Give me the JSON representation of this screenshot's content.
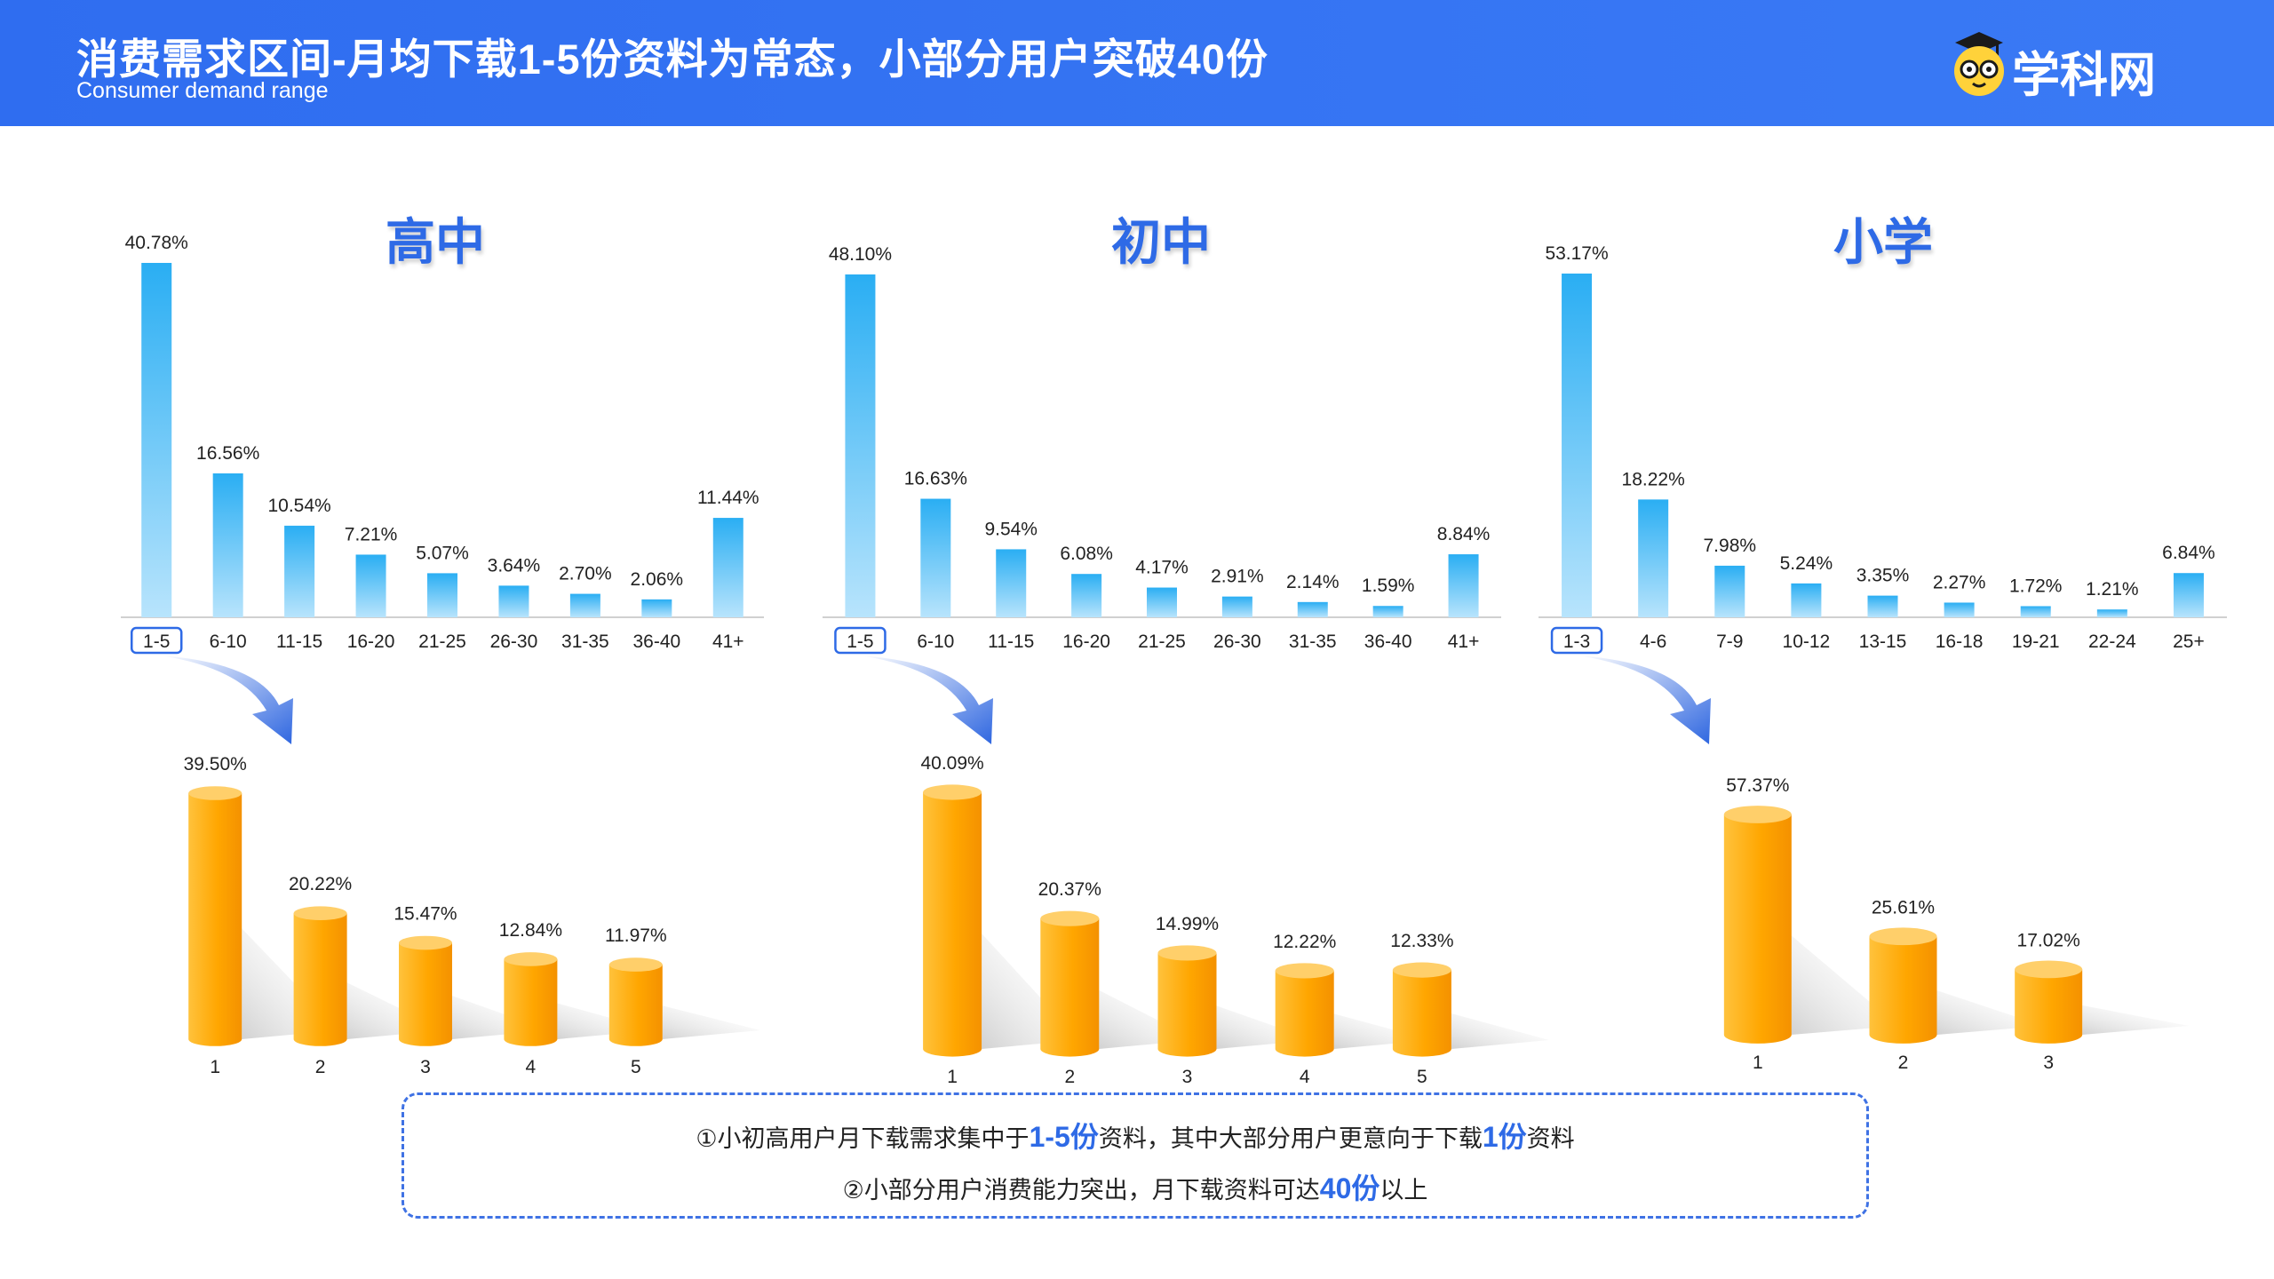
{
  "header": {
    "title": "消费需求区间-月均下载1-5份资料为常态，小部分用户突破40份",
    "subtitle": "Consumer demand range",
    "logo_text": "学科网"
  },
  "colors": {
    "header_blue": "#2f6df0",
    "accent_blue": "#2e6ae6",
    "bar_blue": "#3db6f4",
    "bar_orange": "#ffa800"
  },
  "chart_data": [
    {
      "type": "bar",
      "title": "高中",
      "categories": [
        "1-5",
        "6-10",
        "11-15",
        "16-20",
        "21-25",
        "26-30",
        "31-35",
        "36-40",
        "41+"
      ],
      "values": [
        40.78,
        16.56,
        10.54,
        7.21,
        5.07,
        3.64,
        2.7,
        2.06,
        11.44
      ],
      "labels": [
        "40.78%",
        "16.56%",
        "10.54%",
        "7.21%",
        "5.07%",
        "3.64%",
        "2.70%",
        "2.06%",
        "11.44%"
      ],
      "highlighted_category": "1-5",
      "unit": "%"
    },
    {
      "type": "bar",
      "title": "初中",
      "categories": [
        "1-5",
        "6-10",
        "11-15",
        "16-20",
        "21-25",
        "26-30",
        "31-35",
        "36-40",
        "41+"
      ],
      "values": [
        48.1,
        16.63,
        9.54,
        6.08,
        4.17,
        2.91,
        2.14,
        1.59,
        8.84
      ],
      "labels": [
        "48.10%",
        "16.63%",
        "9.54%",
        "6.08%",
        "4.17%",
        "2.91%",
        "2.14%",
        "1.59%",
        "8.84%"
      ],
      "highlighted_category": "1-5",
      "unit": "%"
    },
    {
      "type": "bar",
      "title": "小学",
      "categories": [
        "1-3",
        "4-6",
        "7-9",
        "10-12",
        "13-15",
        "16-18",
        "19-21",
        "22-24",
        "25+"
      ],
      "values": [
        53.17,
        18.22,
        7.98,
        5.24,
        3.35,
        2.27,
        1.72,
        1.21,
        6.84
      ],
      "labels": [
        "53.17%",
        "18.22%",
        "7.98%",
        "5.24%",
        "3.35%",
        "2.27%",
        "1.72%",
        "1.21%",
        "6.84%"
      ],
      "highlighted_category": "1-3",
      "unit": "%"
    },
    {
      "type": "bar",
      "style": "cylinder",
      "categories": [
        "1",
        "2",
        "3",
        "4",
        "5"
      ],
      "values": [
        39.5,
        20.22,
        15.47,
        12.84,
        11.97
      ],
      "labels": [
        "39.50%",
        "20.22%",
        "15.47%",
        "12.84%",
        "11.97%"
      ],
      "unit": "%"
    },
    {
      "type": "bar",
      "style": "cylinder",
      "categories": [
        "1",
        "2",
        "3",
        "4",
        "5"
      ],
      "values": [
        40.09,
        20.37,
        14.99,
        12.22,
        12.33
      ],
      "labels": [
        "40.09%",
        "20.37%",
        "14.99%",
        "12.22%",
        "12.33%"
      ],
      "unit": "%"
    },
    {
      "type": "bar",
      "style": "cylinder",
      "categories": [
        "1",
        "2",
        "3"
      ],
      "values": [
        57.37,
        25.61,
        17.02
      ],
      "labels": [
        "57.37%",
        "25.61%",
        "17.02%"
      ],
      "unit": "%"
    }
  ],
  "notes": {
    "line1": {
      "prefix": "①小初高用户月下载需求集中于",
      "hl1": "1-5份",
      "middle": "资料，其中大部分用户更意向于下载",
      "hl2": "1份",
      "suffix": "资料"
    },
    "line2": {
      "prefix": "②小部分用户消费能力突出，月下载资料可达",
      "hl1": "40份",
      "suffix": "以上"
    }
  }
}
